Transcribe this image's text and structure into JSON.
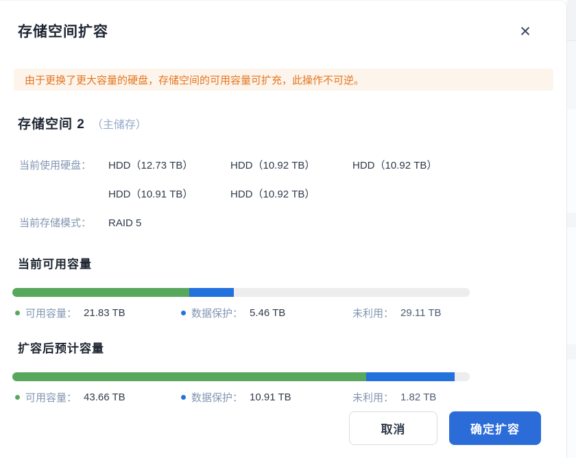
{
  "colors": {
    "accent_blue": "#2b6cd9",
    "bar_green": "#57a85c",
    "bar_blue": "#2271dd",
    "bar_grey": "#ededed",
    "alert_bg": "#fdf4eb",
    "alert_text": "#e4751f",
    "label_grey_blue": "#8296b2"
  },
  "dialog": {
    "title": "存储空间扩容",
    "close_icon": "✕",
    "alert_text": "由于更换了更大容量的硬盘，存储空间的可用容量可扩充，此操作不可逆。",
    "pool": {
      "name": "存储空间 2",
      "tag": "（主储存）",
      "disks_label": "当前使用硬盘：",
      "disks": [
        "HDD（12.73 TB）",
        "HDD（10.92 TB）",
        "HDD（10.92 TB）",
        "HDD（10.91 TB）",
        "HDD（10.92 TB）"
      ],
      "mode_label": "当前存储模式：",
      "mode_value": "RAID 5"
    },
    "sections": {
      "current": {
        "heading": "当前可用容量",
        "segments": [
          {
            "label": "可用容量：",
            "value": "21.83 TB",
            "tb": 21.83,
            "color": "#57a85c",
            "dot": true
          },
          {
            "label": "数据保护：",
            "value": "5.46 TB",
            "tb": 5.46,
            "color": "#2271dd",
            "dot": true
          },
          {
            "label": "未利用：",
            "value": "29.11 TB",
            "tb": 29.11,
            "color": "#ededed",
            "dot": false
          }
        ]
      },
      "expanded": {
        "heading": "扩容后预计容量",
        "segments": [
          {
            "label": "可用容量：",
            "value": "43.66 TB",
            "tb": 43.66,
            "color": "#57a85c",
            "dot": true
          },
          {
            "label": "数据保护：",
            "value": "10.91 TB",
            "tb": 10.91,
            "color": "#2271dd",
            "dot": true
          },
          {
            "label": "未利用：",
            "value": "1.82 TB",
            "tb": 1.82,
            "color": "#ededed",
            "dot": false
          }
        ]
      }
    },
    "footer": {
      "cancel_label": "取消",
      "confirm_label": "确定扩容"
    }
  }
}
